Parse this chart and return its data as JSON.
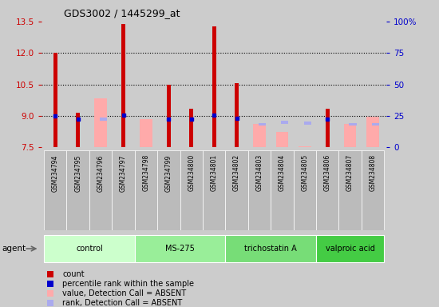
{
  "title": "GDS3002 / 1445299_at",
  "samples": [
    "GSM234794",
    "GSM234795",
    "GSM234796",
    "GSM234797",
    "GSM234798",
    "GSM234799",
    "GSM234800",
    "GSM234801",
    "GSM234802",
    "GSM234803",
    "GSM234804",
    "GSM234805",
    "GSM234806",
    "GSM234807",
    "GSM234808"
  ],
  "red_bars": [
    12.0,
    9.15,
    null,
    13.4,
    null,
    10.5,
    9.35,
    13.25,
    10.55,
    null,
    null,
    null,
    9.35,
    null,
    null
  ],
  "pink_bars": [
    null,
    null,
    9.85,
    null,
    8.85,
    null,
    null,
    null,
    null,
    8.6,
    8.25,
    7.55,
    null,
    8.6,
    8.95
  ],
  "blue_dots": [
    9.0,
    8.85,
    null,
    9.05,
    null,
    8.85,
    8.85,
    9.05,
    8.9,
    null,
    null,
    null,
    8.85,
    null,
    null
  ],
  "lavender_dots": [
    null,
    null,
    8.85,
    null,
    null,
    null,
    null,
    null,
    null,
    8.6,
    8.7,
    8.65,
    null,
    8.6,
    8.6
  ],
  "ymin": 7.5,
  "ymax": 13.5,
  "yticks_left": [
    7.5,
    9.0,
    10.5,
    12.0,
    13.5
  ],
  "yticks_right_vals": [
    0,
    25,
    50,
    75,
    100
  ],
  "yticks_right_pos": [
    7.5,
    9.0,
    10.5,
    12.0,
    13.5
  ],
  "dotted_lines": [
    9.0,
    10.5,
    12.0
  ],
  "agent_groups": [
    {
      "label": "control",
      "start": 0,
      "end": 3,
      "color": "#ccffcc"
    },
    {
      "label": "MS-275",
      "start": 4,
      "end": 7,
      "color": "#99ee99"
    },
    {
      "label": "trichostatin A",
      "start": 8,
      "end": 11,
      "color": "#77dd77"
    },
    {
      "label": "valproic acid",
      "start": 12,
      "end": 14,
      "color": "#44cc44"
    }
  ],
  "red_color": "#cc0000",
  "pink_color": "#ffaaaa",
  "blue_color": "#0000cc",
  "lavender_color": "#aaaaee",
  "plot_bg": "#cccccc",
  "fig_bg": "#cccccc",
  "tick_bg": "#bbbbbb"
}
